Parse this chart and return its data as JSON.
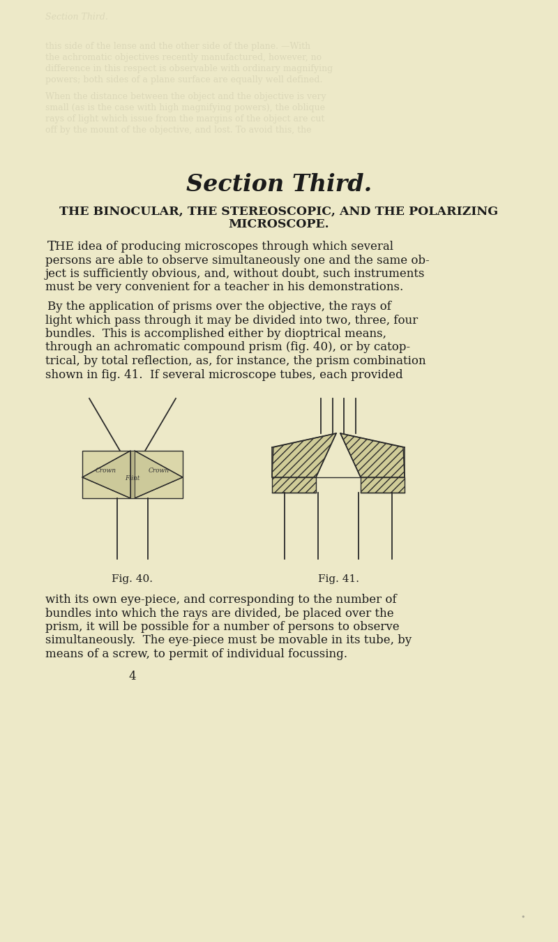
{
  "bg_color": "#ede9c8",
  "text_color": "#1a1a1a",
  "section_title": "Section Third.",
  "subtitle_line1": "THE BINOCULAR, THE STEREOSCOPIC, AND THE POLARIZING",
  "subtitle_line2": "MICROSCOPE.",
  "p1_line1": "The idea of producing microscopes through which several",
  "p1_line2": "persons are able to observe simultaneously one and the same ob-",
  "p1_line3": "ject is sufficiently obvious, and, without doubt, such instruments",
  "p1_line4": "must be very convenient for a teacher in his demonstrations.",
  "p2_line1": "By the application of prisms over the objective, the rays of",
  "p2_line2": "light which pass through it may be divided into two, three, four",
  "p2_line3": "bundles.  This is accomplished either by dioptrical means,",
  "p2_line4": "through an achromatic compound prism (fig. 40), or by catop-",
  "p2_line5": "trical, by total reflection, as, for instance, the prism combination",
  "p2_line6": "shown in fig. 41.  If several microscope tubes, each provided",
  "p3_line1": "with its own eye-piece, and corresponding to the number of",
  "p3_line2": "bundles into which the rays are divided, be placed over the",
  "p3_line3": "prism, it will be possible for a number of persons to observe",
  "p3_line4": "simultaneously.  The eye-piece must be movable in its tube, by",
  "p3_line5": "means of a screw, to permit of individual focussing.",
  "fig40_label": "Fig. 40.",
  "fig41_label": "Fig. 41.",
  "page_number": "4",
  "faded_alpha": 0.18
}
